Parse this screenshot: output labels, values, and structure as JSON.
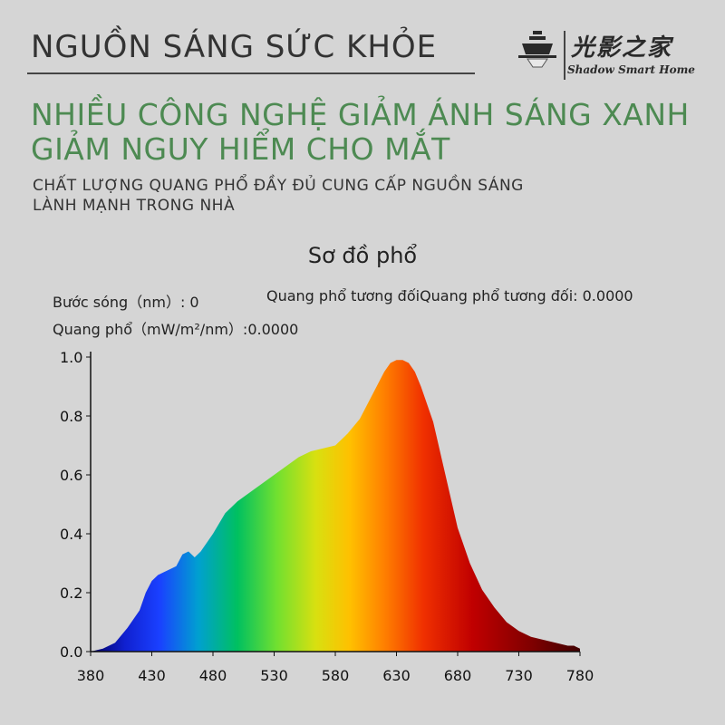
{
  "header": {
    "title": "NGUỒN SÁNG SỨC KHỎE",
    "logo_cn": "光影之家",
    "logo_en": "Shadow Smart Home"
  },
  "headline": {
    "line1": "NHIỀU CÔNG NGHỆ GIẢM ÁNH SÁNG XANH",
    "line2": "GIẢM NGUY HIỂM CHO MẮT"
  },
  "subheading": {
    "line1": "CHẤT LƯỢNG QUANG PHỔ ĐẦY ĐỦ CUNG CẤP NGUỒN SÁNG",
    "line2": "LÀNH MẠNH TRONG NHÀ"
  },
  "readouts": {
    "wavelength": "Bước sóng（nm）: 0",
    "relative": "Quang phổ tương đốiQuang phổ tương đối:  0.0000",
    "spectrum": "Quang phổ（mW/m²/nm）:0.0000"
  },
  "colors": {
    "headline": "#4d8a52",
    "background": "#d5d5d5"
  },
  "chart_data": {
    "type": "area",
    "title": "Sơ đồ phổ",
    "xlim": [
      380,
      780
    ],
    "ylim": [
      0,
      1.0
    ],
    "xticks": [
      "380",
      "430",
      "480",
      "530",
      "580",
      "630",
      "680",
      "730",
      "780"
    ],
    "yticks": [
      "0.0",
      "0.2",
      "0.4",
      "0.6",
      "0.8",
      "1.0"
    ],
    "x": [
      380,
      390,
      400,
      410,
      420,
      425,
      430,
      435,
      440,
      445,
      450,
      455,
      460,
      465,
      470,
      480,
      490,
      500,
      510,
      520,
      530,
      540,
      550,
      560,
      570,
      580,
      590,
      600,
      610,
      620,
      625,
      630,
      635,
      640,
      645,
      650,
      660,
      670,
      680,
      690,
      700,
      710,
      720,
      730,
      740,
      750,
      760,
      770,
      775,
      780
    ],
    "values": [
      0.0,
      0.01,
      0.03,
      0.08,
      0.14,
      0.2,
      0.24,
      0.26,
      0.27,
      0.28,
      0.29,
      0.33,
      0.34,
      0.32,
      0.34,
      0.4,
      0.47,
      0.51,
      0.54,
      0.57,
      0.6,
      0.63,
      0.66,
      0.68,
      0.69,
      0.7,
      0.74,
      0.79,
      0.87,
      0.95,
      0.98,
      0.99,
      0.99,
      0.98,
      0.95,
      0.9,
      0.78,
      0.6,
      0.42,
      0.3,
      0.21,
      0.15,
      0.1,
      0.07,
      0.05,
      0.04,
      0.03,
      0.02,
      0.02,
      0.01
    ]
  }
}
